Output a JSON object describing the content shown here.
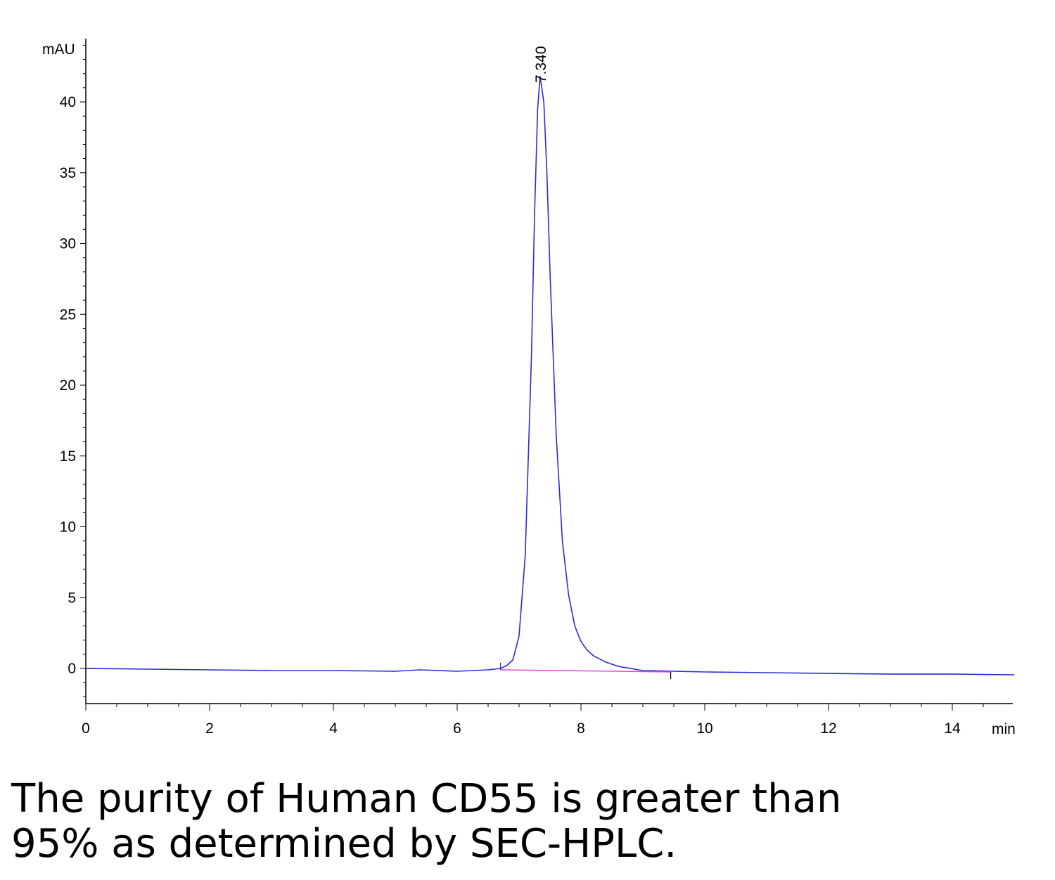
{
  "chart_data": {
    "type": "line",
    "title": "",
    "xlabel": "min",
    "ylabel": "mAU",
    "xlim": [
      0,
      15
    ],
    "ylim": [
      -2.5,
      44
    ],
    "x_ticks": [
      0,
      2,
      4,
      6,
      8,
      10,
      12,
      14
    ],
    "y_ticks": [
      0,
      5,
      10,
      15,
      20,
      25,
      30,
      35,
      40
    ],
    "grid": false,
    "legend": "none",
    "peak_label": "7.340",
    "series": [
      {
        "color": "#2b2bd6",
        "x": [
          0,
          1,
          2,
          3,
          4,
          5,
          5.4,
          6,
          6.5,
          6.7,
          6.8,
          6.9,
          7.0,
          7.1,
          7.2,
          7.25,
          7.3,
          7.34,
          7.4,
          7.45,
          7.5,
          7.6,
          7.7,
          7.8,
          7.9,
          8.0,
          8.1,
          8.2,
          8.4,
          8.6,
          9.0,
          9.5,
          10,
          11,
          12,
          13,
          14,
          15
        ],
        "y": [
          0,
          -0.05,
          -0.1,
          -0.15,
          -0.15,
          -0.2,
          -0.1,
          -0.2,
          -0.1,
          0.0,
          0.2,
          0.6,
          2.3,
          8.0,
          22.0,
          32.0,
          39.5,
          41.8,
          40.0,
          35.0,
          28.0,
          16.5,
          9.0,
          5.2,
          3.0,
          1.9,
          1.3,
          0.9,
          0.45,
          0.15,
          -0.15,
          -0.2,
          -0.25,
          -0.3,
          -0.35,
          -0.4,
          -0.4,
          -0.45
        ]
      },
      {
        "color": "#e040e0",
        "x": [
          6.7,
          9.45
        ],
        "y": [
          -0.1,
          -0.25
        ]
      }
    ]
  },
  "caption": {
    "line1": "The purity of Human CD55 is greater than",
    "line2": "95% as determined by SEC-HPLC."
  }
}
